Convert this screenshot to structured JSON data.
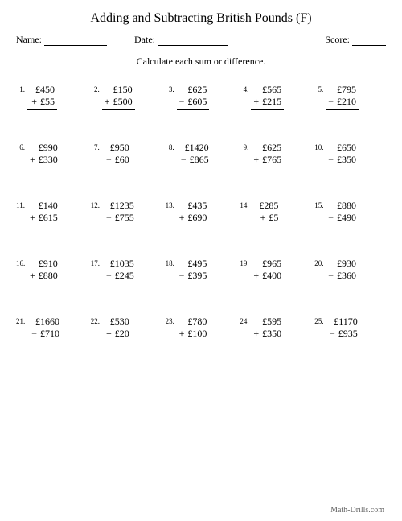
{
  "title": "Adding and Subtracting British Pounds (F)",
  "labels": {
    "name": "Name:",
    "date": "Date:",
    "score": "Score:"
  },
  "instruction": "Calculate each sum or difference.",
  "currency": "£",
  "footer": "Math-Drills.com",
  "style": {
    "background": "#ffffff",
    "text_color": "#000000",
    "title_fontsize": 16,
    "body_fontsize": 12,
    "number_fontsize": 9,
    "footer_color": "#666666",
    "name_line_width": 78,
    "date_line_width": 88,
    "score_line_width": 42
  },
  "problems": [
    {
      "n": "1.",
      "a": "450",
      "op": "+",
      "b": "55"
    },
    {
      "n": "2.",
      "a": "150",
      "op": "+",
      "b": "500"
    },
    {
      "n": "3.",
      "a": "625",
      "op": "−",
      "b": "605"
    },
    {
      "n": "4.",
      "a": "565",
      "op": "+",
      "b": "215"
    },
    {
      "n": "5.",
      "a": "795",
      "op": "−",
      "b": "210"
    },
    {
      "n": "6.",
      "a": "990",
      "op": "+",
      "b": "330"
    },
    {
      "n": "7.",
      "a": "950",
      "op": "−",
      "b": "60"
    },
    {
      "n": "8.",
      "a": "1420",
      "op": "−",
      "b": "865"
    },
    {
      "n": "9.",
      "a": "625",
      "op": "+",
      "b": "765"
    },
    {
      "n": "10.",
      "a": "650",
      "op": "−",
      "b": "350"
    },
    {
      "n": "11.",
      "a": "140",
      "op": "+",
      "b": "615"
    },
    {
      "n": "12.",
      "a": "1235",
      "op": "−",
      "b": "755"
    },
    {
      "n": "13.",
      "a": "435",
      "op": "+",
      "b": "690"
    },
    {
      "n": "14.",
      "a": "285",
      "op": "+",
      "b": "5"
    },
    {
      "n": "15.",
      "a": "880",
      "op": "−",
      "b": "490"
    },
    {
      "n": "16.",
      "a": "910",
      "op": "+",
      "b": "880"
    },
    {
      "n": "17.",
      "a": "1035",
      "op": "−",
      "b": "245"
    },
    {
      "n": "18.",
      "a": "495",
      "op": "−",
      "b": "395"
    },
    {
      "n": "19.",
      "a": "965",
      "op": "+",
      "b": "400"
    },
    {
      "n": "20.",
      "a": "930",
      "op": "−",
      "b": "360"
    },
    {
      "n": "21.",
      "a": "1660",
      "op": "−",
      "b": "710"
    },
    {
      "n": "22.",
      "a": "530",
      "op": "+",
      "b": "20"
    },
    {
      "n": "23.",
      "a": "780",
      "op": "+",
      "b": "100"
    },
    {
      "n": "24.",
      "a": "595",
      "op": "+",
      "b": "350"
    },
    {
      "n": "25.",
      "a": "1170",
      "op": "−",
      "b": "935"
    }
  ]
}
